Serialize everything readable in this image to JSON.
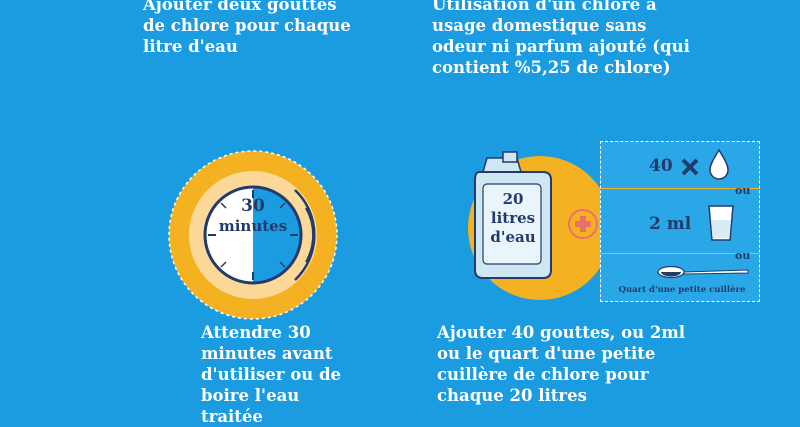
{
  "instructions": {
    "top_left": "Ajouter deux gouttes de chlore pour chaque litre d'eau",
    "top_right": "Utilisation d'un chlore à usage domestique sans odeur ni parfum ajouté (qui contient %5,25 de chlore)",
    "bottom_left": "Attendre 30 minutes avant d'utiliser ou de boire l'eau traitée",
    "bottom_right": "Ajouter 40 gouttes, ou 2ml ou le quart d'une petite cuillère de chlore pour chaque 20 litres"
  },
  "timer": {
    "number": "30",
    "unit": "minutes"
  },
  "jerrycan": {
    "line1": "20",
    "line2": "litres",
    "line3": "d'eau"
  },
  "dosage": {
    "drops": "40",
    "volume": "2 ml",
    "separator": "ou",
    "spoon_caption": "Quart d'une petite cuillère"
  },
  "colors": {
    "background": "#1b9ce0",
    "accent_yellow": "#f4b223",
    "navy": "#243a6b",
    "plus_red": "#e8726a"
  }
}
